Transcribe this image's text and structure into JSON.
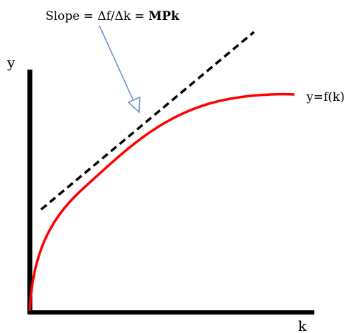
{
  "annotation": {
    "prefix": "Slope = ",
    "formula": "Δf/Δk",
    "equals": " = ",
    "mpk": "MPk"
  },
  "axes": {
    "y_label": "y",
    "x_label": "k"
  },
  "curve": {
    "label": "y=f(k)",
    "color": "#ff0000"
  },
  "tangent": {
    "style": "dashed",
    "color": "#000000"
  },
  "arrow": {
    "color": "#6a96c8"
  }
}
